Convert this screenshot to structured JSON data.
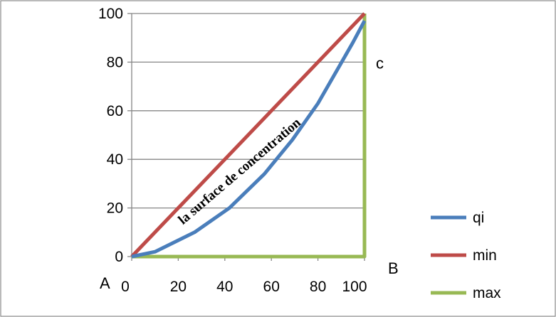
{
  "chart_data": {
    "type": "line",
    "title": "",
    "xlabel": "",
    "ylabel": "",
    "xlim": [
      0,
      100
    ],
    "ylim": [
      0,
      100
    ],
    "grid": "horizontal",
    "x_ticks": [
      "0",
      "20",
      "40",
      "60",
      "80",
      "100"
    ],
    "y_ticks": [
      "0",
      "20",
      "40",
      "60",
      "80",
      "100"
    ],
    "legend_position": "right",
    "series": [
      {
        "name": "qi",
        "color": "#4a7ebb",
        "points": [
          [
            0,
            0
          ],
          [
            10,
            2
          ],
          [
            27,
            10
          ],
          [
            42,
            20
          ],
          [
            57,
            34
          ],
          [
            69,
            48
          ],
          [
            80,
            63
          ],
          [
            89,
            78
          ],
          [
            95,
            88
          ],
          [
            100,
            97
          ]
        ]
      },
      {
        "name": "min",
        "color": "#be4b48",
        "points": [
          [
            0,
            0
          ],
          [
            100,
            100
          ]
        ]
      },
      {
        "name": "max",
        "color": "#98b954",
        "points": [
          [
            0,
            0
          ],
          [
            100,
            0
          ],
          [
            100,
            100
          ]
        ]
      }
    ],
    "annotations": {
      "area_label": "la surface de concentration",
      "point_a": "A",
      "point_b": "B",
      "point_c": "c"
    }
  }
}
